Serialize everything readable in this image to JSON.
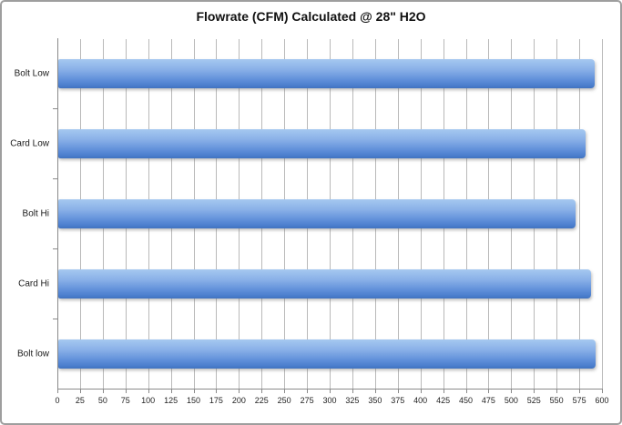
{
  "window": {
    "background": "#ffffff",
    "border_color": "#9e9e9e"
  },
  "chart_data": {
    "type": "bar",
    "orientation": "horizontal",
    "title": "Flowrate (CFM) Calculated @ 28\" H2O",
    "categories": [
      "Bolt Low",
      "Card Low",
      "Bolt Hi",
      "Card Hi",
      "Bolt low"
    ],
    "values": [
      591,
      581,
      570,
      587,
      592
    ],
    "xlabel": "",
    "ylabel": "",
    "xlim": [
      0,
      600
    ],
    "x_tick_step": 25,
    "x_ticks": [
      "0",
      "25",
      "50",
      "75",
      "100",
      "125",
      "150",
      "175",
      "200",
      "225",
      "250",
      "275",
      "300",
      "325",
      "350",
      "375",
      "400",
      "425",
      "450",
      "475",
      "500",
      "525",
      "550",
      "575",
      "600"
    ],
    "grid": "vertical-on",
    "legend": "none",
    "colors": {
      "bar_top": "#a5c8f0",
      "bar_bottom": "#4072c0",
      "gridline": "#b9b9b9",
      "axis": "#8a8a8a",
      "title_text": "#111111",
      "tick_text": "#222222",
      "category_text": "#1a1a1a"
    }
  }
}
